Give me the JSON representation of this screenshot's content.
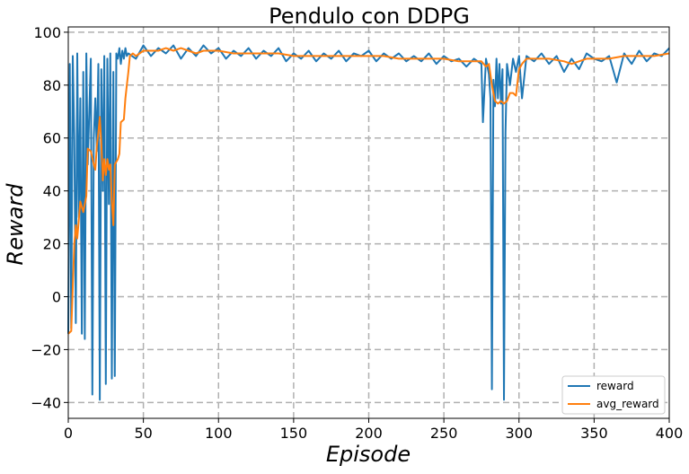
{
  "chart_data": {
    "type": "line",
    "title": "Pendulo con DDPG",
    "xlabel": "Episode",
    "ylabel": "Reward",
    "xlim": [
      0,
      400
    ],
    "ylim": [
      -46,
      102
    ],
    "xticks": [
      0,
      50,
      100,
      150,
      200,
      250,
      300,
      350,
      400
    ],
    "yticks": [
      -40,
      -20,
      0,
      20,
      40,
      60,
      80,
      100
    ],
    "grid": "dashed",
    "legend_position": "bottom-right",
    "colors": {
      "reward": "#1f77b4",
      "avg_reward": "#ff7f0e"
    },
    "series": [
      {
        "name": "reward",
        "points": [
          [
            0,
            -14
          ],
          [
            1,
            88
          ],
          [
            2,
            -12
          ],
          [
            3,
            91
          ],
          [
            4,
            60
          ],
          [
            5,
            -10
          ],
          [
            6,
            92
          ],
          [
            7,
            30
          ],
          [
            8,
            75
          ],
          [
            9,
            -14
          ],
          [
            10,
            85
          ],
          [
            11,
            -16
          ],
          [
            12,
            92
          ],
          [
            13,
            50
          ],
          [
            14,
            70
          ],
          [
            15,
            90
          ],
          [
            16,
            -37
          ],
          [
            17,
            60
          ],
          [
            18,
            75
          ],
          [
            19,
            55
          ],
          [
            20,
            88
          ],
          [
            21,
            -39
          ],
          [
            22,
            86
          ],
          [
            23,
            40
          ],
          [
            24,
            91
          ],
          [
            25,
            -33
          ],
          [
            26,
            90
          ],
          [
            27,
            35
          ],
          [
            28,
            92
          ],
          [
            29,
            -31
          ],
          [
            30,
            85
          ],
          [
            31,
            -30
          ],
          [
            32,
            92
          ],
          [
            33,
            90
          ],
          [
            34,
            94
          ],
          [
            35,
            88
          ],
          [
            36,
            93
          ],
          [
            37,
            90
          ],
          [
            38,
            94
          ],
          [
            39,
            91
          ],
          [
            40,
            92
          ],
          [
            45,
            90
          ],
          [
            50,
            95
          ],
          [
            55,
            91
          ],
          [
            60,
            94
          ],
          [
            65,
            92
          ],
          [
            70,
            95
          ],
          [
            75,
            90
          ],
          [
            80,
            94
          ],
          [
            85,
            91
          ],
          [
            90,
            95
          ],
          [
            95,
            92
          ],
          [
            100,
            94
          ],
          [
            105,
            90
          ],
          [
            110,
            93
          ],
          [
            115,
            91
          ],
          [
            120,
            94
          ],
          [
            125,
            90
          ],
          [
            130,
            93
          ],
          [
            135,
            91
          ],
          [
            140,
            94
          ],
          [
            145,
            89
          ],
          [
            150,
            92
          ],
          [
            155,
            90
          ],
          [
            160,
            93
          ],
          [
            165,
            89
          ],
          [
            170,
            92
          ],
          [
            175,
            90
          ],
          [
            180,
            93
          ],
          [
            185,
            89
          ],
          [
            190,
            92
          ],
          [
            195,
            91
          ],
          [
            200,
            93
          ],
          [
            205,
            89
          ],
          [
            210,
            92
          ],
          [
            215,
            90
          ],
          [
            220,
            92
          ],
          [
            225,
            89
          ],
          [
            230,
            91
          ],
          [
            235,
            89
          ],
          [
            240,
            92
          ],
          [
            245,
            88
          ],
          [
            250,
            91
          ],
          [
            255,
            89
          ],
          [
            260,
            90
          ],
          [
            265,
            87
          ],
          [
            270,
            90
          ],
          [
            275,
            88
          ],
          [
            276,
            66
          ],
          [
            278,
            90
          ],
          [
            280,
            84
          ],
          [
            281,
            75
          ],
          [
            282,
            -35
          ],
          [
            283,
            82
          ],
          [
            284,
            72
          ],
          [
            285,
            90
          ],
          [
            286,
            75
          ],
          [
            287,
            88
          ],
          [
            288,
            73
          ],
          [
            289,
            86
          ],
          [
            290,
            -39
          ],
          [
            291,
            62
          ],
          [
            292,
            88
          ],
          [
            294,
            80
          ],
          [
            296,
            90
          ],
          [
            298,
            85
          ],
          [
            300,
            91
          ],
          [
            302,
            75
          ],
          [
            305,
            91
          ],
          [
            310,
            89
          ],
          [
            315,
            92
          ],
          [
            320,
            88
          ],
          [
            325,
            91
          ],
          [
            330,
            85
          ],
          [
            335,
            90
          ],
          [
            340,
            86
          ],
          [
            345,
            92
          ],
          [
            350,
            90
          ],
          [
            355,
            89
          ],
          [
            360,
            91
          ],
          [
            365,
            81
          ],
          [
            370,
            92
          ],
          [
            375,
            88
          ],
          [
            380,
            93
          ],
          [
            385,
            89
          ],
          [
            390,
            92
          ],
          [
            395,
            91
          ],
          [
            400,
            94
          ]
        ]
      },
      {
        "name": "avg_reward",
        "points": [
          [
            0,
            -14
          ],
          [
            2,
            -13
          ],
          [
            4,
            20
          ],
          [
            5,
            27
          ],
          [
            6,
            22
          ],
          [
            8,
            36
          ],
          [
            10,
            32
          ],
          [
            12,
            38
          ],
          [
            13,
            56
          ],
          [
            15,
            55
          ],
          [
            17,
            50
          ],
          [
            18,
            48
          ],
          [
            19,
            57
          ],
          [
            20,
            62
          ],
          [
            21,
            68
          ],
          [
            22,
            58
          ],
          [
            23,
            44
          ],
          [
            24,
            52
          ],
          [
            25,
            46
          ],
          [
            26,
            52
          ],
          [
            27,
            48
          ],
          [
            28,
            50
          ],
          [
            29,
            36
          ],
          [
            30,
            27
          ],
          [
            31,
            50
          ],
          [
            33,
            52
          ],
          [
            34,
            54
          ],
          [
            35,
            66
          ],
          [
            37,
            67
          ],
          [
            38,
            75
          ],
          [
            39,
            80
          ],
          [
            40,
            85
          ],
          [
            41,
            91
          ],
          [
            43,
            92
          ],
          [
            45,
            91
          ],
          [
            50,
            93
          ],
          [
            55,
            93
          ],
          [
            60,
            93
          ],
          [
            65,
            94
          ],
          [
            70,
            93
          ],
          [
            75,
            94
          ],
          [
            80,
            93
          ],
          [
            85,
            92
          ],
          [
            90,
            93
          ],
          [
            100,
            93
          ],
          [
            110,
            92
          ],
          [
            120,
            92
          ],
          [
            130,
            92
          ],
          [
            140,
            92
          ],
          [
            150,
            91
          ],
          [
            160,
            91
          ],
          [
            170,
            91
          ],
          [
            180,
            91
          ],
          [
            190,
            91
          ],
          [
            200,
            91
          ],
          [
            210,
            91
          ],
          [
            220,
            90
          ],
          [
            230,
            90
          ],
          [
            240,
            90
          ],
          [
            250,
            90
          ],
          [
            260,
            89
          ],
          [
            270,
            89
          ],
          [
            275,
            89
          ],
          [
            278,
            87
          ],
          [
            280,
            88
          ],
          [
            282,
            80
          ],
          [
            284,
            74
          ],
          [
            286,
            73
          ],
          [
            288,
            74
          ],
          [
            290,
            73
          ],
          [
            292,
            74
          ],
          [
            294,
            77
          ],
          [
            296,
            77
          ],
          [
            298,
            76
          ],
          [
            300,
            86
          ],
          [
            302,
            88
          ],
          [
            305,
            90
          ],
          [
            310,
            90
          ],
          [
            320,
            90
          ],
          [
            330,
            89
          ],
          [
            335,
            88
          ],
          [
            340,
            89
          ],
          [
            345,
            90
          ],
          [
            350,
            90
          ],
          [
            360,
            90
          ],
          [
            370,
            91
          ],
          [
            380,
            91
          ],
          [
            390,
            91
          ],
          [
            400,
            92
          ]
        ]
      }
    ]
  }
}
